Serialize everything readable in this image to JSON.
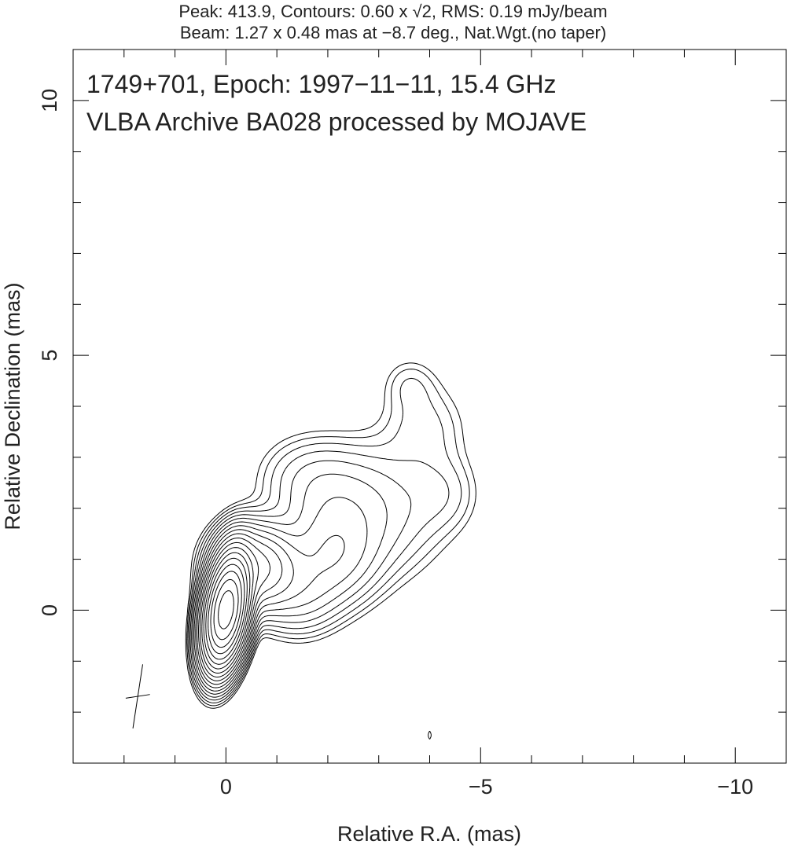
{
  "chart_data": {
    "type": "contour",
    "header": {
      "line1": "Peak: 413.9, Contours: 0.60 x √2, RMS: 0.19 mJy/beam",
      "line2": "Beam: 1.27 x 0.48 mas at −8.7 deg., Nat.Wgt.(no taper)"
    },
    "title": {
      "line1": "1749+701, Epoch: 1997−11−11, 15.4 GHz",
      "line2": "VLBA Archive BA028 processed by MOJAVE"
    },
    "xlabel": "Relative R.A. (mas)",
    "ylabel": "Relative Declination (mas)",
    "xlim": [
      3,
      -11
    ],
    "ylim": [
      -3,
      11
    ],
    "xticks": [
      {
        "value": 0,
        "label": "0"
      },
      {
        "value": -5,
        "label": "−5"
      },
      {
        "value": -10,
        "label": "−10"
      }
    ],
    "yticks": [
      {
        "value": 0,
        "label": "0"
      },
      {
        "value": 5,
        "label": "5"
      },
      {
        "value": 10,
        "label": "10"
      }
    ],
    "minor_tick_step": 1,
    "peak_mJy_per_beam": 413.9,
    "rms_mJy_per_beam": 0.19,
    "contour_base_mJy": 0.6,
    "contour_factor": 1.4142,
    "beam": {
      "major_mas": 1.27,
      "minor_mas": 0.48,
      "pa_deg": -8.7,
      "center": [
        1.73,
        -1.69
      ]
    },
    "line_color": "#000000"
  }
}
